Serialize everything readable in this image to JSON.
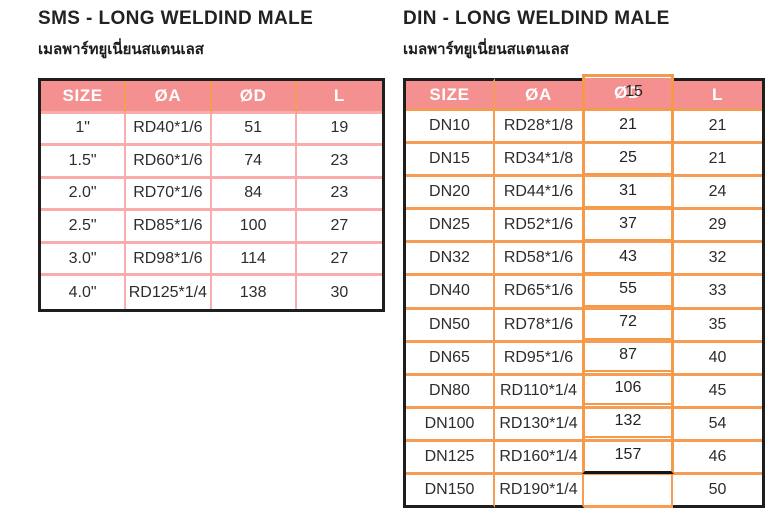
{
  "colors": {
    "header_bg": "#f59090",
    "header_text": "#ffffff",
    "sms_grid": "#f9acac",
    "din_grid": "#f79c55",
    "selection_border": "#f49a4a",
    "outer_border": "#1e1e1e",
    "cell_text": "#2d2d2d"
  },
  "sms": {
    "title": "SMS - LONG WELDIND MALE",
    "subtitle": "เมลพาร์ทยูเนี่ยนสแตนเลส",
    "headers": [
      "SIZE",
      "ØA",
      "ØD",
      "L"
    ],
    "rows": [
      [
        "1\"",
        "RD40*1/6",
        "51",
        "19"
      ],
      [
        "1.5\"",
        "RD60*1/6",
        "74",
        "23"
      ],
      [
        "2.0\"",
        "RD70*1/6",
        "84",
        "23"
      ],
      [
        "2.5\"",
        "RD85*1/6",
        "100",
        "27"
      ],
      [
        "3.0\"",
        "RD98*1/6",
        "114",
        "27"
      ],
      [
        "4.0\"",
        "RD125*1/4",
        "138",
        "30"
      ]
    ]
  },
  "din": {
    "title": "DIN - LONG WELDIND MALE",
    "subtitle": "เมลพาร์ทยูเนี่ยนสแตนเลส",
    "headers": [
      "SIZE",
      "ØA",
      "ØD",
      "L"
    ],
    "rows": [
      [
        "DN10",
        "RD28*1/8",
        "",
        "21"
      ],
      [
        "DN15",
        "RD34*1/8",
        "",
        "21"
      ],
      [
        "DN20",
        "RD44*1/6",
        "",
        "24"
      ],
      [
        "DN25",
        "RD52*1/6",
        "",
        "29"
      ],
      [
        "DN32",
        "RD58*1/6",
        "",
        "32"
      ],
      [
        "DN40",
        "RD65*1/6",
        "",
        "33"
      ],
      [
        "DN50",
        "RD78*1/6",
        "",
        "35"
      ],
      [
        "DN65",
        "RD95*1/6",
        "",
        "40"
      ],
      [
        "DN80",
        "RD110*1/4",
        "",
        "45"
      ],
      [
        "DN100",
        "RD130*1/4",
        "",
        "54"
      ],
      [
        "DN125",
        "RD160*1/4",
        "",
        "46"
      ],
      [
        "DN150",
        "RD190*1/4",
        "",
        "50"
      ]
    ],
    "selected_column_values": [
      "15",
      "21",
      "25",
      "31",
      "37",
      "43",
      "55",
      "72",
      "87",
      "106",
      "132",
      "157"
    ]
  }
}
